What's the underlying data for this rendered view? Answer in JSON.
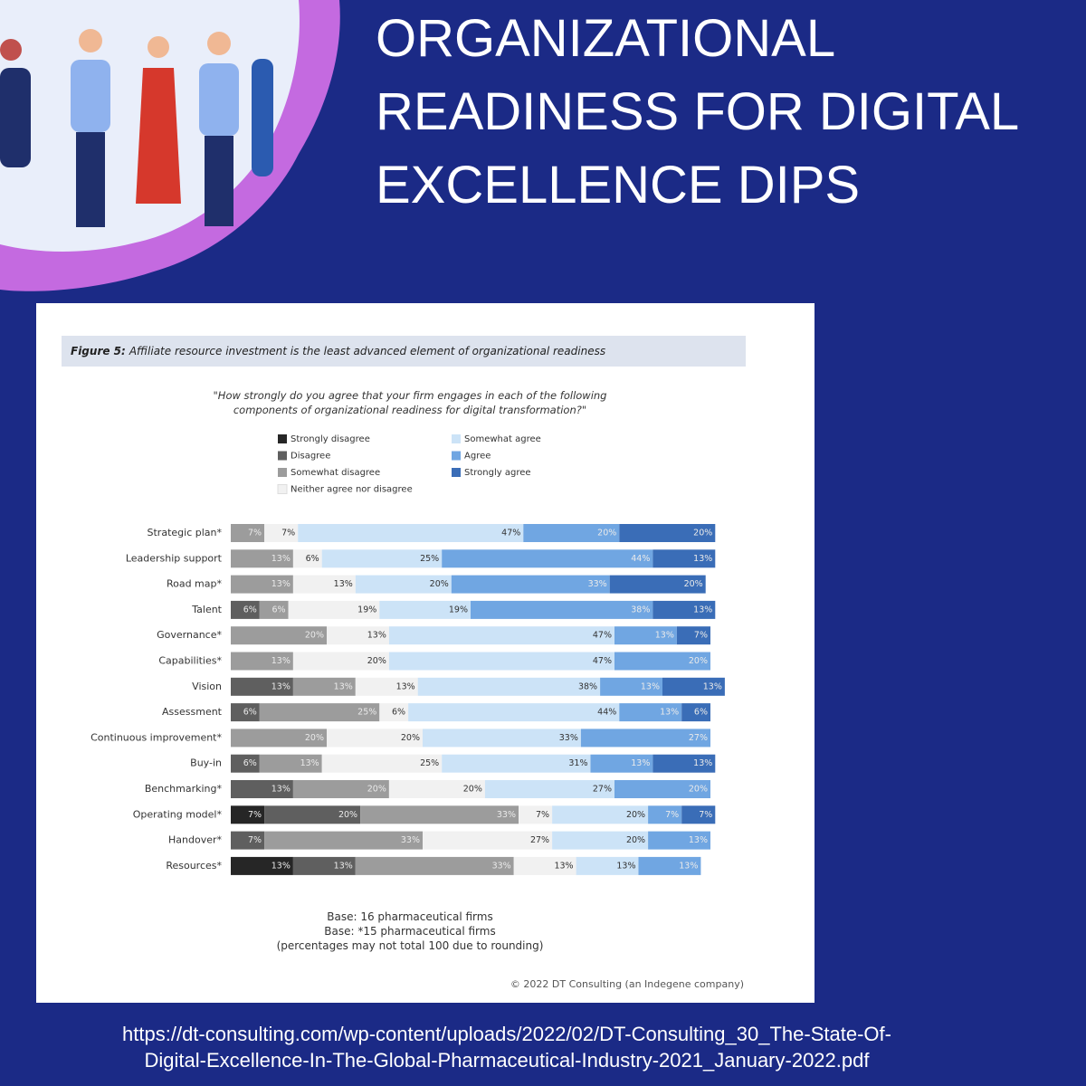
{
  "header": {
    "title": "ORGANIZATIONAL READINESS FOR DIGITAL EXCELLENCE DIPS"
  },
  "chart_data": {
    "type": "stacked-bar-horizontal",
    "figure_label": "Figure 5:",
    "title": "Affiliate resource investment is the least advanced element of organizational readiness",
    "subtitle": "\"How strongly do you agree that your firm engages in each of the following components of organizational readiness for digital transformation?\"",
    "categories": [
      "Strategic plan*",
      "Leadership support",
      "Road map*",
      "Talent",
      "Governance*",
      "Capabilities*",
      "Vision",
      "Assessment",
      "Continuous improvement*",
      "Buy-in",
      "Benchmarking*",
      "Operating model*",
      "Handover*",
      "Resources*"
    ],
    "series": [
      {
        "name": "Strongly disagree",
        "color": "#262626",
        "values": [
          null,
          null,
          null,
          null,
          null,
          null,
          null,
          null,
          null,
          null,
          null,
          7,
          null,
          13
        ],
        "value_labels": [
          null,
          null,
          null,
          null,
          null,
          null,
          null,
          null,
          null,
          null,
          null,
          "7%",
          null,
          "13%"
        ]
      },
      {
        "name": "Disagree",
        "color": "#5f5f5f",
        "values": [
          null,
          null,
          null,
          6,
          null,
          null,
          13,
          6,
          null,
          6,
          13,
          20,
          7,
          13
        ],
        "value_labels": [
          null,
          null,
          null,
          "6%",
          null,
          null,
          "13%",
          "6%",
          null,
          "6%",
          "13%",
          "20%",
          "7%",
          "13%"
        ]
      },
      {
        "name": "Somewhat disagree",
        "color": "#9c9c9c",
        "values": [
          7,
          13,
          13,
          6,
          20,
          13,
          13,
          25,
          20,
          13,
          20,
          33,
          33,
          33
        ],
        "value_labels": [
          "7%",
          "13%",
          "13%",
          "6%",
          "20%",
          "13%",
          "13%",
          "25%",
          "20%",
          "13%",
          "20%",
          "33%",
          "33%",
          "33%"
        ]
      },
      {
        "name": "Neither agree nor disagree",
        "color": "#f1f1f1",
        "values": [
          7,
          6,
          13,
          19,
          13,
          20,
          13,
          6,
          20,
          25,
          20,
          7,
          27,
          13
        ],
        "value_labels": [
          "7%",
          "6%",
          "13%",
          "19%",
          "13%",
          "20%",
          "13%",
          "6%",
          "20%",
          "25%",
          "20%",
          "7%",
          "27%",
          "13%"
        ]
      },
      {
        "name": "Somewhat agree",
        "color": "#cce3f7",
        "values": [
          47,
          25,
          20,
          19,
          47,
          47,
          38,
          44,
          33,
          31,
          27,
          20,
          20,
          13
        ],
        "value_labels": [
          "47%",
          "25%",
          "20%",
          "19%",
          "47%",
          "47%",
          "38%",
          "44%",
          "33%",
          "31%",
          "27%",
          "20%",
          "20%",
          "13%"
        ]
      },
      {
        "name": "Agree",
        "color": "#70a6e2",
        "values": [
          20,
          44,
          33,
          38,
          13,
          20,
          13,
          13,
          27,
          13,
          20,
          7,
          13,
          13
        ],
        "value_labels": [
          "20%",
          "44%",
          "33%",
          "38%",
          "13%",
          "20%",
          "13%",
          "13%",
          "27%",
          "13%",
          "20%",
          "7%",
          "13%",
          "13%"
        ]
      },
      {
        "name": "Strongly agree",
        "color": "#3a6db7",
        "values": [
          20,
          13,
          20,
          13,
          7,
          null,
          13,
          6,
          null,
          13,
          null,
          7,
          null,
          null
        ],
        "value_labels": [
          "20%",
          "13%",
          "20%",
          "13%",
          "7%",
          null,
          "13%",
          "6%",
          null,
          "13%",
          null,
          "7%",
          null,
          null
        ]
      }
    ],
    "notes": [
      "Base: 16 pharmaceutical firms",
      "Base: *15 pharmaceutical firms",
      "(percentages may not total 100 due to rounding)"
    ],
    "copyright": "© 2022 DT Consulting (an Indegene company)"
  },
  "footer": {
    "source": [
      "https://dt-consulting.com/wp-content/uploads/2022/02/DT-Consulting_30_The-State-Of-",
      "Digital-Excellence-In-The-Global-Pharmaceutical-Industry-2021_January-2022.pdf"
    ]
  }
}
